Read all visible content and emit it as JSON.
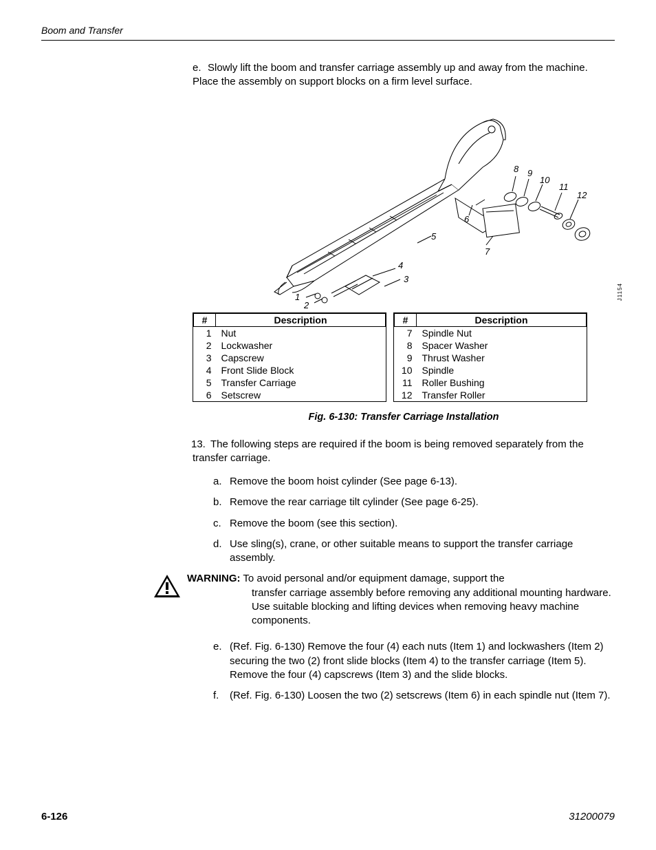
{
  "header": {
    "title": "Boom and Transfer"
  },
  "step_e": {
    "letter": "e.",
    "text": "Slowly lift the boom and transfer carriage assembly up and away from the machine. Place the assembly on support blocks on a firm level surface."
  },
  "figure": {
    "side_code": "J1154",
    "callouts": [
      "1",
      "2",
      "3",
      "4",
      "5",
      "6",
      "7",
      "8",
      "9",
      "10",
      "11",
      "12"
    ],
    "caption": "Fig. 6-130: Transfer Carriage Installation",
    "stroke": "#000000",
    "fill": "#ffffff",
    "label_font": "italic 13px Arial"
  },
  "parts_left": {
    "headers": [
      "#",
      "Description"
    ],
    "rows": [
      [
        "1",
        "Nut"
      ],
      [
        "2",
        "Lockwasher"
      ],
      [
        "3",
        "Capscrew"
      ],
      [
        "4",
        "Front Slide Block"
      ],
      [
        "5",
        "Transfer Carriage"
      ],
      [
        "6",
        "Setscrew"
      ]
    ]
  },
  "parts_right": {
    "headers": [
      "#",
      "Description"
    ],
    "rows": [
      [
        "7",
        "Spindle Nut"
      ],
      [
        "8",
        "Spacer Washer"
      ],
      [
        "9",
        "Thrust Washer"
      ],
      [
        "10",
        "Spindle"
      ],
      [
        "11",
        "Roller Bushing"
      ],
      [
        "12",
        "Transfer Roller"
      ]
    ]
  },
  "step_13": {
    "num": "13.",
    "text": "The following steps are required if the boom is being removed separately from the transfer carriage."
  },
  "sub_a": {
    "l": "a.",
    "t": "Remove the boom hoist cylinder (See page 6-13)."
  },
  "sub_b": {
    "l": "b.",
    "t": "Remove the rear carriage tilt cylinder (See page 6-25)."
  },
  "sub_c": {
    "l": "c.",
    "t": "Remove the boom (see this section)."
  },
  "sub_d": {
    "l": "d.",
    "t": "Use sling(s), crane, or other suitable means to support the transfer carriage assembly."
  },
  "warning": {
    "label": "WARNING:",
    "body": "To avoid personal and/or equipment damage, support the transfer carriage assembly before removing any additional mounting hardware. Use suitable blocking and lifting devices when removing heavy machine components."
  },
  "sub_e": {
    "l": "e.",
    "t": "(Ref. Fig. 6-130) Remove the four (4) each nuts (Item 1) and lockwashers (Item 2) securing the two (2) front slide blocks (Item 4) to the transfer carriage (Item 5). Remove the four (4) capscrews (Item 3) and the slide blocks."
  },
  "sub_f": {
    "l": "f.",
    "t": "(Ref. Fig. 6-130) Loosen the two (2) setscrews (Item 6) in each spindle nut (Item 7)."
  },
  "footer": {
    "page": "6-126",
    "doc": "31200079"
  }
}
